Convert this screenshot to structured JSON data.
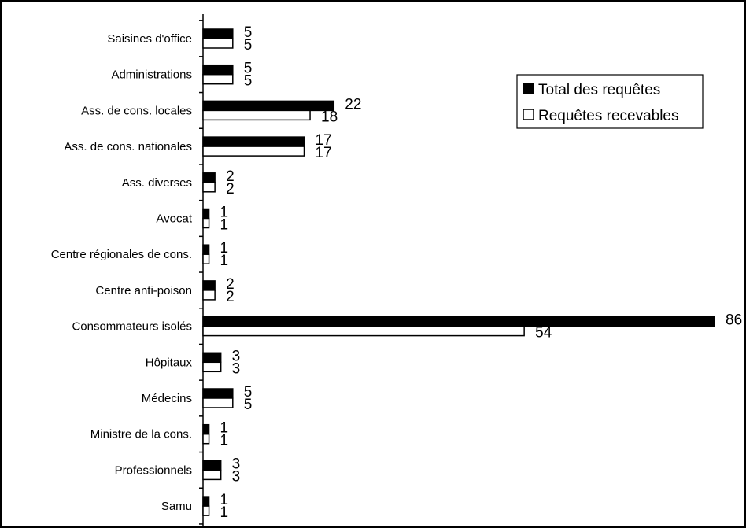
{
  "chart_data": {
    "type": "bar",
    "orientation": "horizontal",
    "categories": [
      "Saisines d'office",
      "Administrations",
      "Ass. de cons. locales",
      "Ass. de cons. nationales",
      "Ass. diverses",
      "Avocat",
      "Centre régionales de cons.",
      "Centre anti-poison",
      "Consommateurs isolés",
      "Hôpitaux",
      "Médecins",
      "Ministre de la cons.",
      "Professionnels",
      "Samu"
    ],
    "series": [
      {
        "name": "Total des requêtes",
        "color": "#000000",
        "values": [
          5,
          5,
          22,
          17,
          2,
          1,
          1,
          2,
          86,
          3,
          5,
          1,
          3,
          1
        ]
      },
      {
        "name": "Requêtes recevables",
        "color": "#ffffff",
        "values": [
          5,
          5,
          18,
          17,
          2,
          1,
          1,
          2,
          54,
          3,
          5,
          1,
          3,
          1
        ]
      }
    ],
    "xlim": [
      0,
      86
    ],
    "grid": false,
    "legend_position": "top-right"
  }
}
